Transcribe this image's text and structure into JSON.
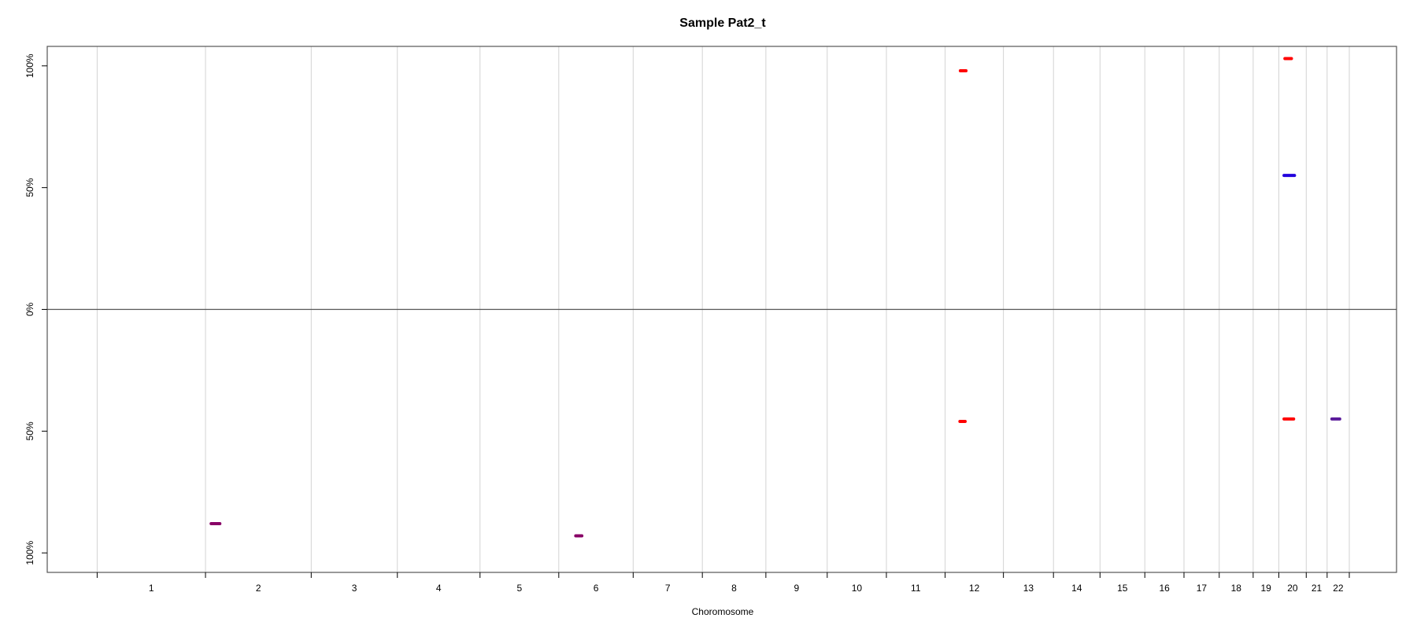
{
  "chart_data": {
    "type": "scatter",
    "title": "Sample Pat2_t",
    "xlabel": "Choromosome",
    "ylabel": "",
    "chromosomes": [
      "1",
      "2",
      "3",
      "4",
      "5",
      "6",
      "7",
      "8",
      "9",
      "10",
      "11",
      "12",
      "13",
      "14",
      "15",
      "16",
      "17",
      "18",
      "19",
      "20",
      "21",
      "22"
    ],
    "x_units": "Mb (cumulative genome position)",
    "chromosome_bounds_mb": [
      0,
      249,
      492,
      690,
      880,
      1061,
      1232,
      1391,
      1537,
      1678,
      1814,
      1949,
      2083,
      2198,
      2305,
      2408,
      2498,
      2579,
      2657,
      2716,
      2779,
      2827,
      2878
    ],
    "yticks": [
      {
        "value": 1,
        "label": "100%"
      },
      {
        "value": 0.5,
        "label": "50%"
      },
      {
        "value": 0,
        "label": "0%"
      },
      {
        "value": -0.5,
        "label": "50%"
      },
      {
        "value": -1,
        "label": "100%"
      }
    ],
    "ylim": [
      -1.08,
      1.08
    ],
    "grid": true,
    "series": [
      {
        "color": "#ff0000",
        "segments": [
          {
            "start_mb": 1984,
            "end_mb": 1997,
            "y": 0.98
          },
          {
            "start_mb": 2730,
            "end_mb": 2745,
            "y": 1.03
          },
          {
            "start_mb": 1983,
            "end_mb": 1995,
            "y": -0.46
          },
          {
            "start_mb": 2728,
            "end_mb": 2750,
            "y": -0.45
          }
        ]
      },
      {
        "color": "#2200dd",
        "segments": [
          {
            "start_mb": 2728,
            "end_mb": 2752,
            "y": 0.55
          }
        ]
      },
      {
        "color": "#880066",
        "segments": [
          {
            "start_mb": 262,
            "end_mb": 282,
            "y": -0.88
          },
          {
            "start_mb": 1100,
            "end_mb": 1114,
            "y": -0.93
          }
        ]
      },
      {
        "color": "#5a1a9a",
        "segments": [
          {
            "start_mb": 2838,
            "end_mb": 2856,
            "y": -0.45
          }
        ]
      }
    ]
  }
}
